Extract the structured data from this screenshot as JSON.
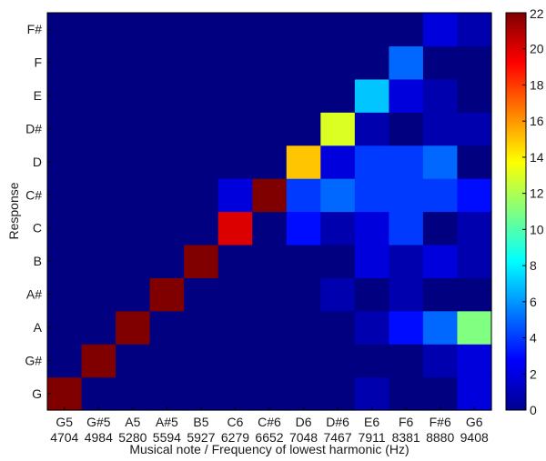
{
  "chart_data": {
    "type": "heatmap",
    "title": "",
    "xlabel": "Musical note / Frequency of lowest harmonic (Hz)",
    "ylabel": "Response",
    "x_notes": [
      "G5",
      "G#5",
      "A5",
      "A#5",
      "B5",
      "C6",
      "C#6",
      "D6",
      "D#6",
      "E6",
      "F6",
      "F#6",
      "G6"
    ],
    "x_freqs": [
      "4704",
      "4984",
      "5280",
      "5594",
      "5927",
      "6279",
      "6652",
      "7048",
      "7467",
      "7911",
      "8381",
      "8880",
      "9408"
    ],
    "y_categories": [
      "G",
      "G#",
      "A",
      "A#",
      "B",
      "C",
      "C#",
      "D",
      "D#",
      "E",
      "F",
      "F#"
    ],
    "colorbar_ticks": [
      "0",
      "2",
      "4",
      "6",
      "8",
      "10",
      "12",
      "14",
      "16",
      "18",
      "20",
      "22"
    ],
    "colorbar_range": [
      0,
      22
    ],
    "colormap": "jet",
    "grid": false,
    "values": [
      [
        22,
        0,
        0,
        0,
        0,
        0,
        0,
        0,
        0,
        1,
        0,
        0,
        2
      ],
      [
        0,
        22,
        0,
        0,
        0,
        0,
        0,
        0,
        0,
        0,
        0,
        1,
        2
      ],
      [
        0,
        0,
        22,
        0,
        0,
        0,
        0,
        0,
        0,
        1,
        3,
        5,
        11
      ],
      [
        0,
        0,
        0,
        22,
        0,
        0,
        0,
        0,
        1,
        0,
        1,
        0,
        0
      ],
      [
        0,
        0,
        0,
        0,
        22,
        0,
        0,
        0,
        0,
        2,
        1,
        2,
        1
      ],
      [
        0,
        0,
        0,
        0,
        0,
        20,
        0,
        3,
        1,
        2,
        4,
        0,
        1
      ],
      [
        0,
        0,
        0,
        0,
        0,
        2,
        22,
        4,
        5,
        4,
        4,
        4,
        3
      ],
      [
        0,
        0,
        0,
        0,
        0,
        0,
        0,
        15,
        2,
        4,
        4,
        5,
        0
      ],
      [
        0,
        0,
        0,
        0,
        0,
        0,
        0,
        0,
        13,
        1,
        0,
        1,
        1
      ],
      [
        0,
        0,
        0,
        0,
        0,
        0,
        0,
        0,
        0,
        7,
        2,
        1,
        0
      ],
      [
        0,
        0,
        0,
        0,
        0,
        0,
        0,
        0,
        0,
        0,
        5,
        0,
        0
      ],
      [
        0,
        0,
        0,
        0,
        0,
        0,
        0,
        0,
        0,
        0,
        0,
        2,
        1
      ]
    ]
  }
}
